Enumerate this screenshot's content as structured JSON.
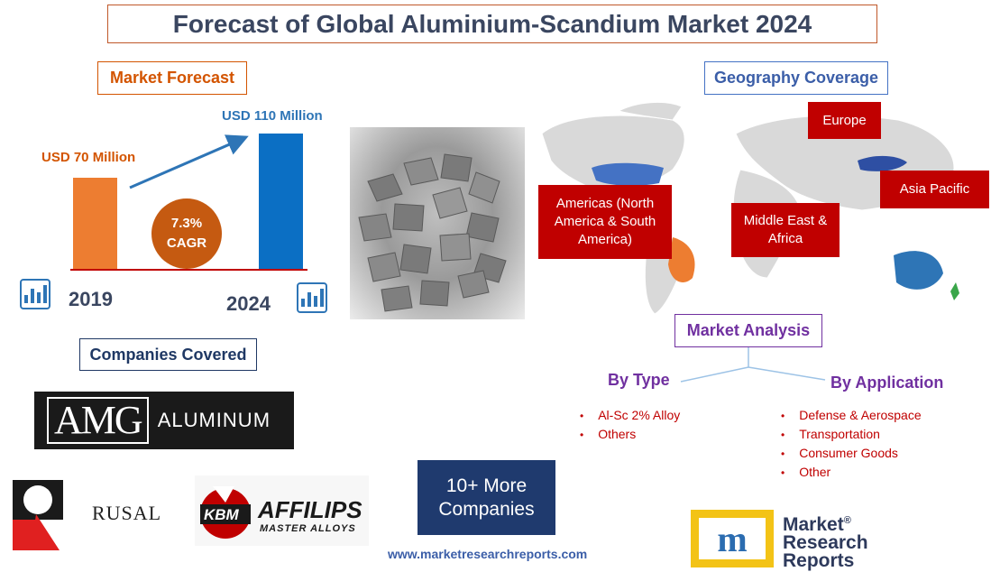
{
  "title": "Forecast of Global Aluminium-Scandium Market 2024",
  "forecast": {
    "label": "Market Forecast",
    "value_2019": "USD 70 Million",
    "value_2024": "USD 110 Million",
    "bar_values_musd": [
      70,
      110
    ],
    "cagr_value": "7.3%",
    "cagr_label": "CAGR",
    "year_start": "2019",
    "year_end": "2024",
    "colors": {
      "bar_2019": "#ed7d31",
      "bar_2024": "#0b6fc4",
      "cagr": "#c55a11"
    }
  },
  "geography": {
    "label": "Geography Coverage",
    "regions": {
      "europe": "Europe",
      "asia_pacific": "Asia Pacific",
      "americas": "Americas (North America & South America)",
      "mea": "Middle East & Africa"
    }
  },
  "analysis": {
    "label": "Market Analysis",
    "by_type": {
      "heading": "By Type",
      "items": [
        "Al-Sc 2% Alloy",
        "Others"
      ]
    },
    "by_application": {
      "heading": "By Application",
      "items": [
        "Defense & Aerospace",
        "Transportation",
        "Consumer Goods",
        "Other"
      ]
    }
  },
  "companies": {
    "label": "Companies Covered",
    "amg": {
      "mark": "AMG",
      "word": "ALUMINUM"
    },
    "rusal": "RUSAL",
    "affilips": {
      "badge": "KBM",
      "name": "AFFILIPS",
      "tagline": "MASTER ALLOYS"
    },
    "more": "10+ More Companies"
  },
  "footer": {
    "url": "www.marketresearchreports.com",
    "logo_mark": "m",
    "logo_lines": [
      "Market",
      "Research",
      "Reports"
    ],
    "logo_reg": "®"
  }
}
